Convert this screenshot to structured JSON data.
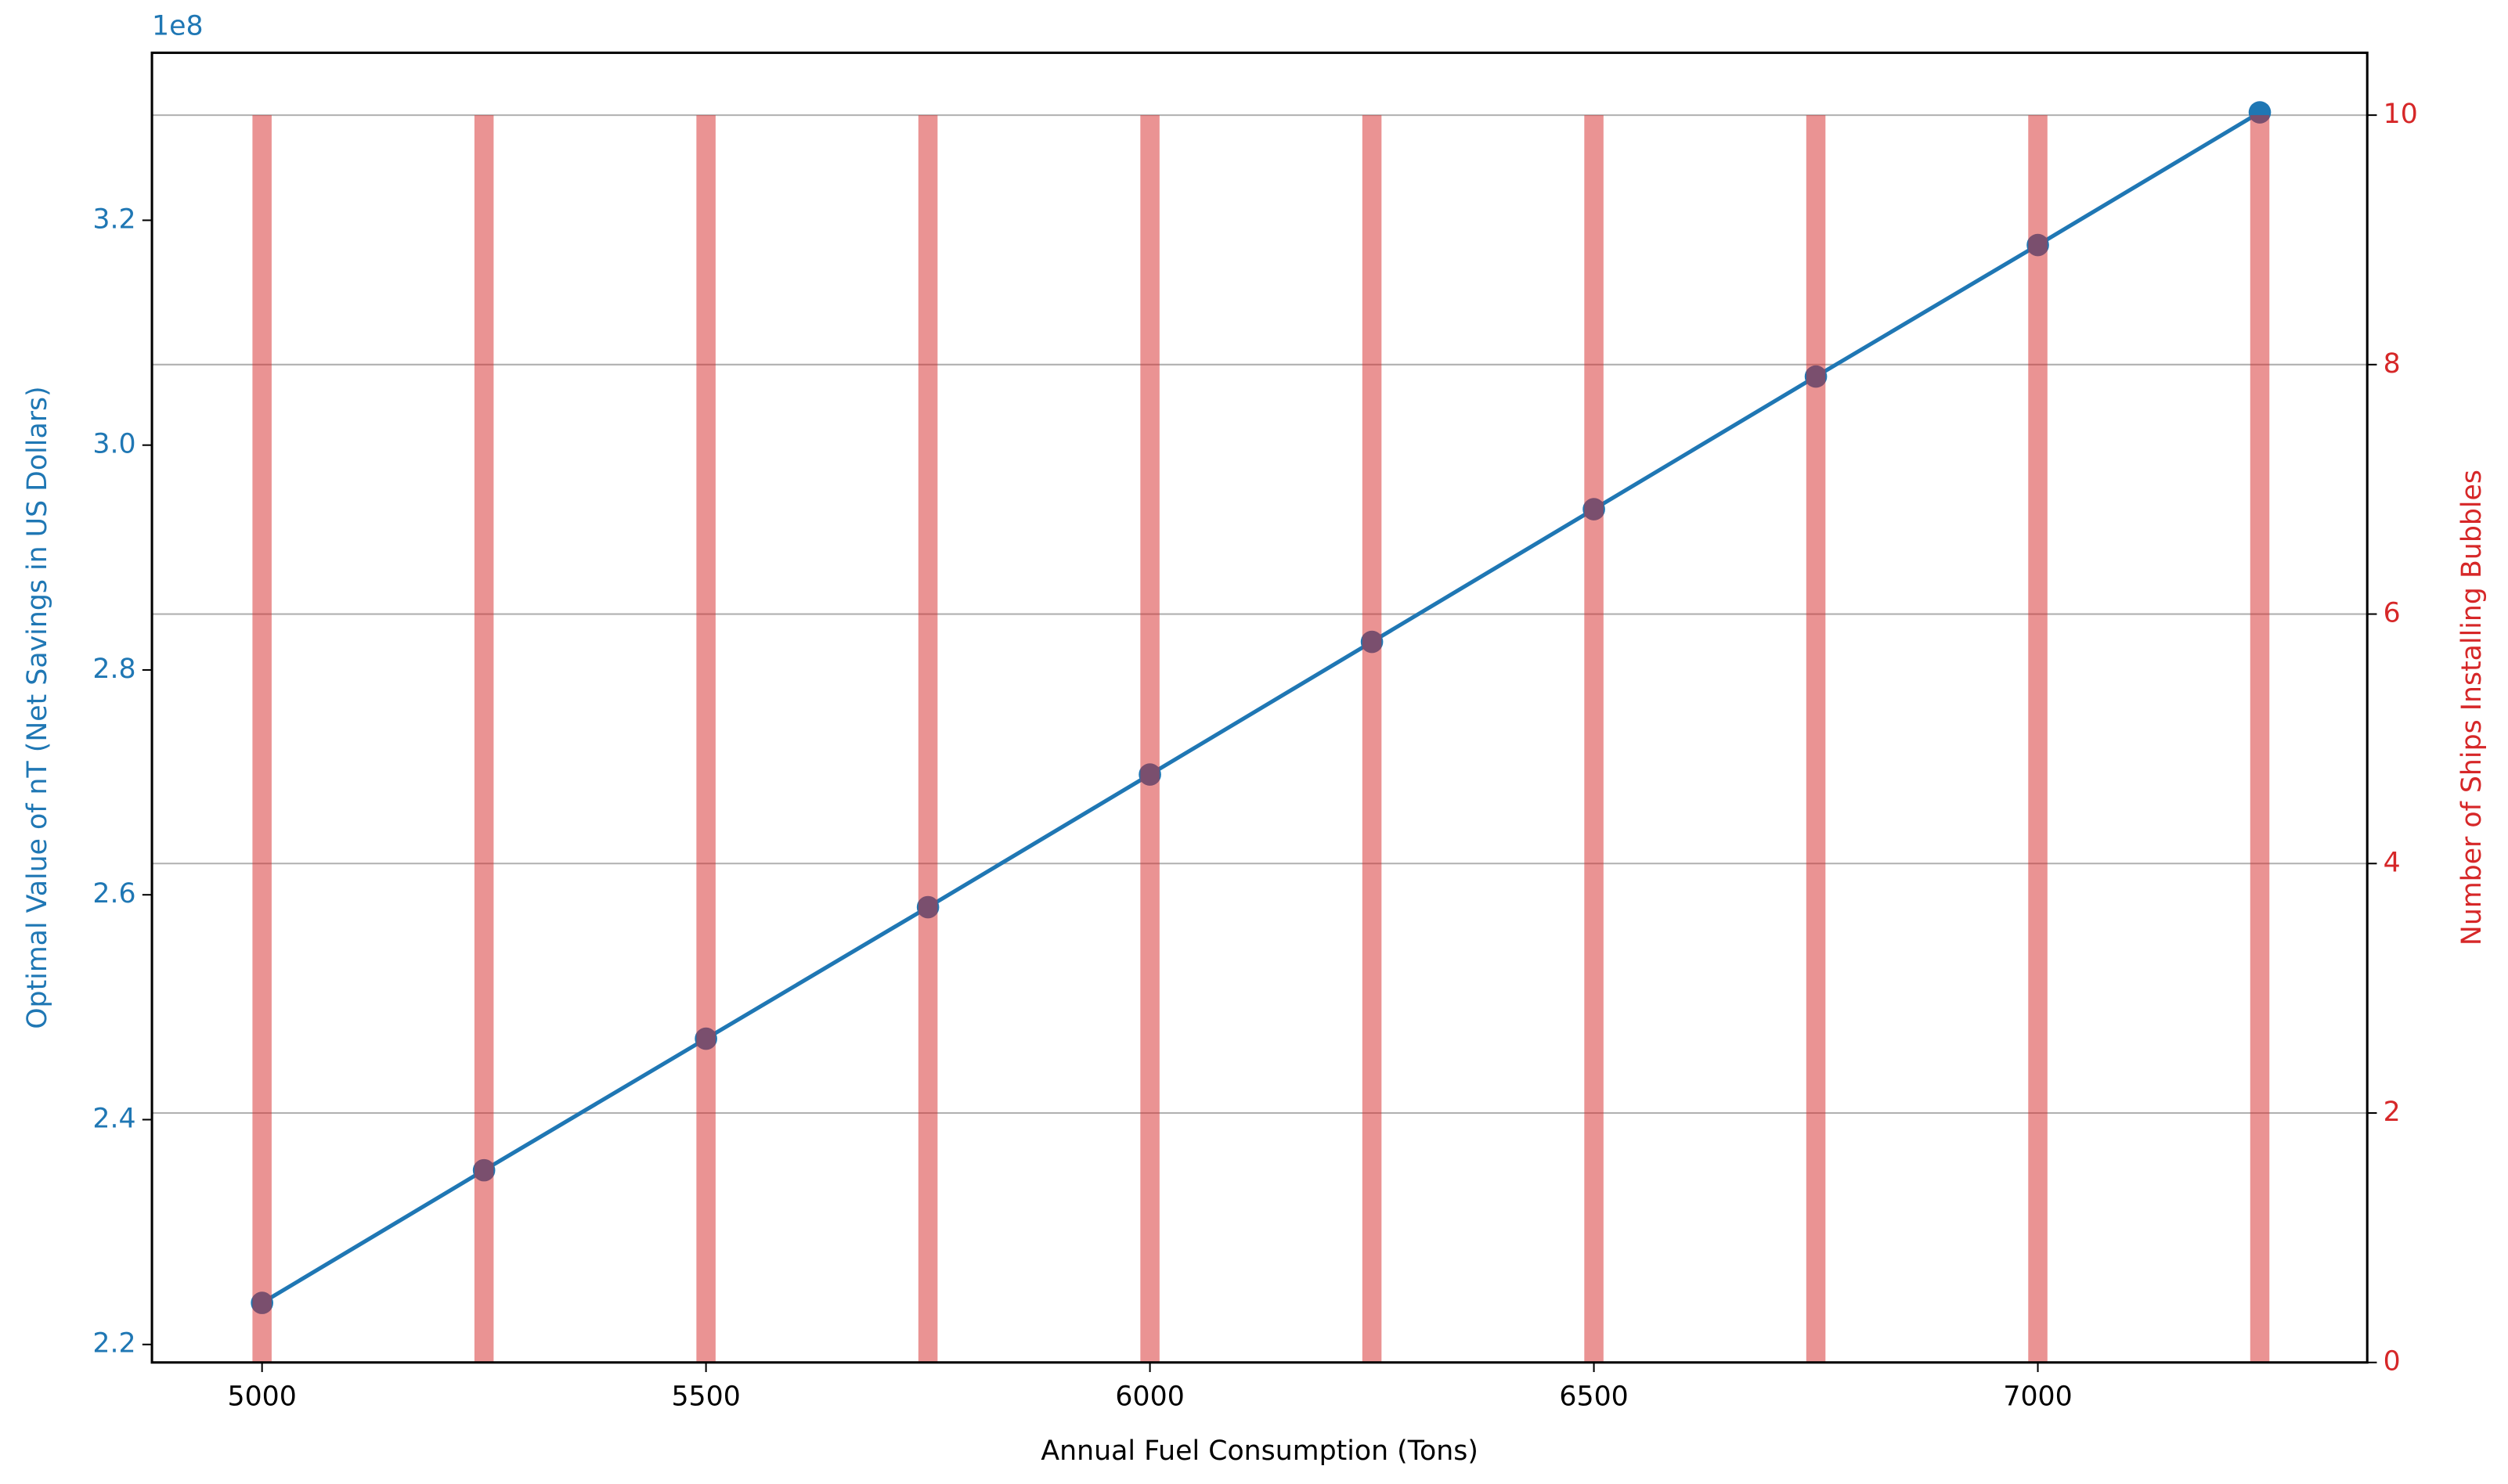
{
  "chart_data": {
    "type": "line",
    "x_label": "Annual Fuel Consumption (Tons)",
    "y_label": "Optimal Value of nT (Net Savings in US Dollars)",
    "y2_label": "Number of Ships Installing Bubbles",
    "y_offset_label": "1e8",
    "x": [
      5000,
      5250,
      5500,
      5750,
      6000,
      6250,
      6500,
      6750,
      7000,
      7250
    ],
    "series": [
      {
        "type": "line",
        "color": "#1f77b4",
        "values": [
          223700000,
          235500000,
          247200000,
          258900000,
          270700000,
          282500000,
          294300000,
          306100000,
          317800000,
          329600000
        ]
      },
      {
        "type": "bar",
        "color": "#d62728",
        "axis": "y2",
        "values": [
          10,
          10,
          10,
          10,
          10,
          10,
          10,
          10,
          10,
          10
        ]
      }
    ],
    "xlim": [
      4876,
      7371
    ],
    "xticks": [
      5000,
      5500,
      6000,
      6500,
      7000
    ],
    "ylim": [
      218400000,
      334900000
    ],
    "yticks": [
      {
        "value": 220000000,
        "label": "2.2"
      },
      {
        "value": 240000000,
        "label": "2.4"
      },
      {
        "value": 260000000,
        "label": "2.6"
      },
      {
        "value": 280000000,
        "label": "2.8"
      },
      {
        "value": 300000000,
        "label": "3.0"
      },
      {
        "value": 320000000,
        "label": "3.2"
      }
    ],
    "y2lim": [
      0,
      10.5
    ],
    "y2ticks": [
      0,
      2,
      4,
      6,
      8,
      10
    ],
    "grid": "y2",
    "y_color": "#1f77b4",
    "y2_color": "#d62728"
  }
}
